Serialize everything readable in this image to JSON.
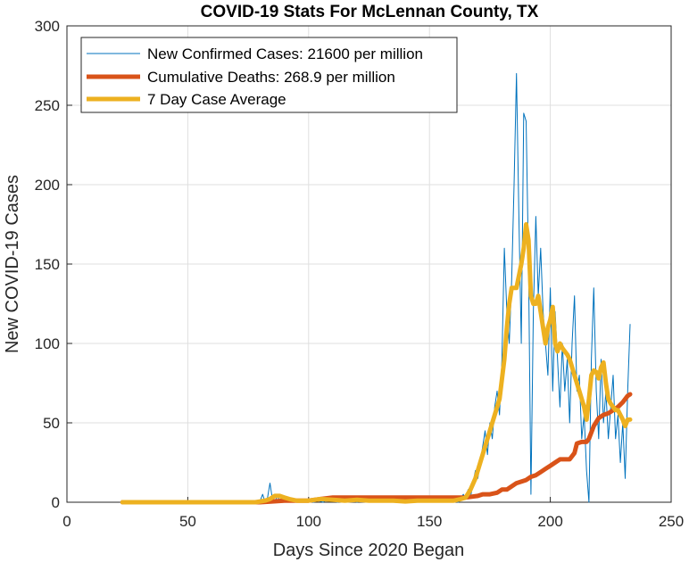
{
  "chart_data": {
    "type": "line",
    "title": "COVID-19 Stats For McLennan County, TX",
    "xlabel": "Days Since 2020 Began",
    "ylabel": "New COVID-19 Cases",
    "xlim": [
      0,
      250
    ],
    "ylim": [
      0,
      300
    ],
    "xticks": [
      0,
      50,
      100,
      150,
      200,
      250
    ],
    "yticks": [
      0,
      50,
      100,
      150,
      200,
      250,
      300
    ],
    "grid": true,
    "legend_position": "top-left",
    "series": [
      {
        "name": "New Confirmed Cases: 21600 per million",
        "color": "#0072BD",
        "line_weight": "thin",
        "points": [
          [
            23,
            0
          ],
          [
            40,
            0
          ],
          [
            60,
            0
          ],
          [
            78,
            0
          ],
          [
            80,
            1
          ],
          [
            81,
            5
          ],
          [
            82,
            0
          ],
          [
            83,
            3
          ],
          [
            84,
            12
          ],
          [
            85,
            2
          ],
          [
            86,
            0
          ],
          [
            87,
            4
          ],
          [
            88,
            1
          ],
          [
            89,
            3
          ],
          [
            90,
            0
          ],
          [
            92,
            2
          ],
          [
            94,
            0
          ],
          [
            96,
            1
          ],
          [
            98,
            0
          ],
          [
            100,
            2
          ],
          [
            102,
            0
          ],
          [
            104,
            1
          ],
          [
            106,
            0
          ],
          [
            108,
            2
          ],
          [
            110,
            1
          ],
          [
            112,
            0
          ],
          [
            114,
            2
          ],
          [
            116,
            1
          ],
          [
            118,
            3
          ],
          [
            120,
            0
          ],
          [
            122,
            2
          ],
          [
            124,
            1
          ],
          [
            126,
            0
          ],
          [
            128,
            2
          ],
          [
            130,
            1
          ],
          [
            132,
            0
          ],
          [
            134,
            3
          ],
          [
            136,
            1
          ],
          [
            138,
            0
          ],
          [
            140,
            2
          ],
          [
            142,
            1
          ],
          [
            144,
            0
          ],
          [
            146,
            2
          ],
          [
            148,
            1
          ],
          [
            150,
            0
          ],
          [
            152,
            2
          ],
          [
            154,
            1
          ],
          [
            156,
            0
          ],
          [
            158,
            3
          ],
          [
            160,
            1
          ],
          [
            162,
            0
          ],
          [
            164,
            5
          ],
          [
            165,
            2
          ],
          [
            166,
            8
          ],
          [
            167,
            3
          ],
          [
            168,
            12
          ],
          [
            169,
            20
          ],
          [
            170,
            15
          ],
          [
            171,
            25
          ],
          [
            172,
            35
          ],
          [
            173,
            45
          ],
          [
            174,
            30
          ],
          [
            175,
            50
          ],
          [
            176,
            40
          ],
          [
            177,
            60
          ],
          [
            178,
            70
          ],
          [
            179,
            55
          ],
          [
            180,
            90
          ],
          [
            181,
            160
          ],
          [
            182,
            120
          ],
          [
            183,
            100
          ],
          [
            184,
            140
          ],
          [
            185,
            200
          ],
          [
            186,
            270
          ],
          [
            187,
            180
          ],
          [
            188,
            100
          ],
          [
            189,
            245
          ],
          [
            190,
            240
          ],
          [
            191,
            150
          ],
          [
            192,
            5
          ],
          [
            193,
            120
          ],
          [
            194,
            180
          ],
          [
            195,
            130
          ],
          [
            196,
            160
          ],
          [
            197,
            120
          ],
          [
            198,
            100
          ],
          [
            199,
            80
          ],
          [
            200,
            135
          ],
          [
            201,
            70
          ],
          [
            202,
            120
          ],
          [
            203,
            90
          ],
          [
            204,
            60
          ],
          [
            205,
            100
          ],
          [
            206,
            70
          ],
          [
            207,
            90
          ],
          [
            208,
            50
          ],
          [
            209,
            100
          ],
          [
            210,
            130
          ],
          [
            211,
            70
          ],
          [
            212,
            80
          ],
          [
            213,
            40
          ],
          [
            214,
            55
          ],
          [
            215,
            20
          ],
          [
            216,
            0
          ],
          [
            217,
            90
          ],
          [
            218,
            135
          ],
          [
            219,
            70
          ],
          [
            220,
            40
          ],
          [
            221,
            90
          ],
          [
            222,
            50
          ],
          [
            223,
            70
          ],
          [
            224,
            40
          ],
          [
            225,
            60
          ],
          [
            226,
            80
          ],
          [
            227,
            40
          ],
          [
            228,
            55
          ],
          [
            229,
            25
          ],
          [
            230,
            50
          ],
          [
            231,
            15
          ],
          [
            232,
            70
          ],
          [
            233,
            112
          ]
        ]
      },
      {
        "name": "Cumulative Deaths: 268.9 per million",
        "color": "#D95319",
        "line_weight": "thick",
        "points": [
          [
            23,
            0
          ],
          [
            80,
            0
          ],
          [
            85,
            0.5
          ],
          [
            90,
            1
          ],
          [
            95,
            1
          ],
          [
            100,
            1
          ],
          [
            105,
            2
          ],
          [
            110,
            3
          ],
          [
            120,
            3
          ],
          [
            130,
            3
          ],
          [
            140,
            3
          ],
          [
            150,
            3
          ],
          [
            160,
            3
          ],
          [
            165,
            3
          ],
          [
            170,
            4
          ],
          [
            172,
            5
          ],
          [
            175,
            5
          ],
          [
            178,
            6
          ],
          [
            180,
            8
          ],
          [
            182,
            8
          ],
          [
            184,
            10
          ],
          [
            186,
            12
          ],
          [
            188,
            13
          ],
          [
            190,
            14
          ],
          [
            192,
            16
          ],
          [
            194,
            17
          ],
          [
            196,
            19
          ],
          [
            198,
            21
          ],
          [
            200,
            23
          ],
          [
            202,
            25
          ],
          [
            204,
            27
          ],
          [
            206,
            27
          ],
          [
            208,
            27
          ],
          [
            210,
            31
          ],
          [
            211,
            37
          ],
          [
            213,
            38
          ],
          [
            215,
            38
          ],
          [
            216,
            40
          ],
          [
            217,
            44
          ],
          [
            218,
            48
          ],
          [
            220,
            53
          ],
          [
            222,
            55
          ],
          [
            224,
            56
          ],
          [
            226,
            58
          ],
          [
            228,
            60
          ],
          [
            230,
            63
          ],
          [
            232,
            67
          ],
          [
            233,
            68
          ]
        ]
      },
      {
        "name": "7 Day Case Average",
        "color": "#EDB120",
        "line_weight": "thick",
        "points": [
          [
            23,
            0
          ],
          [
            40,
            0
          ],
          [
            60,
            0
          ],
          [
            78,
            0
          ],
          [
            80,
            0.5
          ],
          [
            82,
            1
          ],
          [
            84,
            2
          ],
          [
            86,
            4
          ],
          [
            88,
            4
          ],
          [
            90,
            3
          ],
          [
            92,
            2
          ],
          [
            95,
            1
          ],
          [
            100,
            1
          ],
          [
            105,
            2
          ],
          [
            110,
            1.5
          ],
          [
            115,
            1
          ],
          [
            120,
            1.5
          ],
          [
            125,
            1
          ],
          [
            130,
            1
          ],
          [
            135,
            1
          ],
          [
            140,
            0.5
          ],
          [
            145,
            1
          ],
          [
            150,
            1
          ],
          [
            155,
            1
          ],
          [
            160,
            1
          ],
          [
            163,
            2
          ],
          [
            165,
            3
          ],
          [
            167,
            8
          ],
          [
            169,
            15
          ],
          [
            171,
            25
          ],
          [
            173,
            35
          ],
          [
            175,
            45
          ],
          [
            177,
            55
          ],
          [
            179,
            65
          ],
          [
            181,
            90
          ],
          [
            182,
            110
          ],
          [
            183,
            125
          ],
          [
            184,
            135
          ],
          [
            186,
            135
          ],
          [
            188,
            150
          ],
          [
            189,
            160
          ],
          [
            190,
            175
          ],
          [
            191,
            165
          ],
          [
            192,
            130
          ],
          [
            193,
            125
          ],
          [
            194,
            125
          ],
          [
            195,
            130
          ],
          [
            196,
            120
          ],
          [
            197,
            110
          ],
          [
            198,
            100
          ],
          [
            199,
            110
          ],
          [
            200,
            115
          ],
          [
            201,
            123
          ],
          [
            202,
            100
          ],
          [
            203,
            95
          ],
          [
            204,
            100
          ],
          [
            205,
            97
          ],
          [
            206,
            95
          ],
          [
            207,
            93
          ],
          [
            208,
            90
          ],
          [
            209,
            85
          ],
          [
            210,
            80
          ],
          [
            211,
            75
          ],
          [
            212,
            70
          ],
          [
            213,
            65
          ],
          [
            214,
            60
          ],
          [
            215,
            52
          ],
          [
            216,
            65
          ],
          [
            217,
            80
          ],
          [
            218,
            83
          ],
          [
            219,
            82
          ],
          [
            220,
            78
          ],
          [
            221,
            85
          ],
          [
            222,
            88
          ],
          [
            223,
            75
          ],
          [
            224,
            65
          ],
          [
            225,
            62
          ],
          [
            226,
            60
          ],
          [
            227,
            58
          ],
          [
            228,
            58
          ],
          [
            229,
            55
          ],
          [
            230,
            52
          ],
          [
            231,
            48
          ],
          [
            232,
            52
          ],
          [
            233,
            52
          ]
        ]
      }
    ]
  }
}
